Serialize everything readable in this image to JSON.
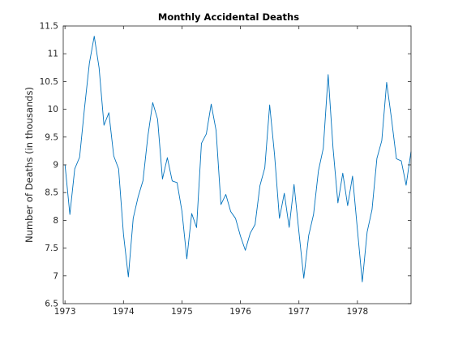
{
  "chart_data": {
    "type": "line",
    "title": "Monthly Accidental Deaths",
    "xlabel": "",
    "ylabel": "Number of Deaths (in thousands)",
    "xlim": [
      1972.97,
      1978.917
    ],
    "ylim": [
      6.5,
      11.5
    ],
    "x_ticks": [
      1973,
      1974,
      1975,
      1976,
      1977,
      1978
    ],
    "x_tick_labels": [
      "1973",
      "1974",
      "1975",
      "1976",
      "1977",
      "1978"
    ],
    "y_ticks": [
      6.5,
      7,
      7.5,
      8,
      8.5,
      9,
      9.5,
      10,
      10.5,
      11,
      11.5
    ],
    "y_tick_labels": [
      "6.5",
      "7",
      "7.5",
      "8",
      "8.5",
      "9",
      "9.5",
      "10",
      "10.5",
      "11",
      "11.5"
    ],
    "grid": false,
    "series_color": "#0072BD",
    "series": [
      {
        "x_start": 1973,
        "x_step_months": 1,
        "values": [
          9.007,
          8.106,
          8.928,
          9.137,
          10.017,
          10.826,
          11.317,
          10.744,
          9.713,
          9.938,
          9.161,
          8.927,
          7.75,
          6.981,
          8.038,
          8.422,
          8.714,
          9.512,
          10.12,
          9.823,
          8.743,
          9.129,
          8.71,
          8.68,
          8.162,
          7.306,
          8.124,
          7.87,
          9.387,
          9.556,
          10.093,
          9.62,
          8.285,
          8.466,
          8.16,
          8.034,
          7.717,
          7.461,
          7.767,
          7.925,
          8.623,
          8.945,
          10.078,
          9.179,
          8.037,
          8.488,
          7.874,
          8.647,
          7.792,
          6.957,
          7.726,
          8.106,
          8.89,
          9.299,
          10.625,
          9.302,
          8.314,
          8.85,
          8.265,
          8.796,
          7.836,
          6.892,
          7.791,
          8.192,
          9.115,
          9.434,
          10.484,
          9.827,
          9.11,
          9.07,
          8.633,
          9.24
        ]
      }
    ]
  }
}
